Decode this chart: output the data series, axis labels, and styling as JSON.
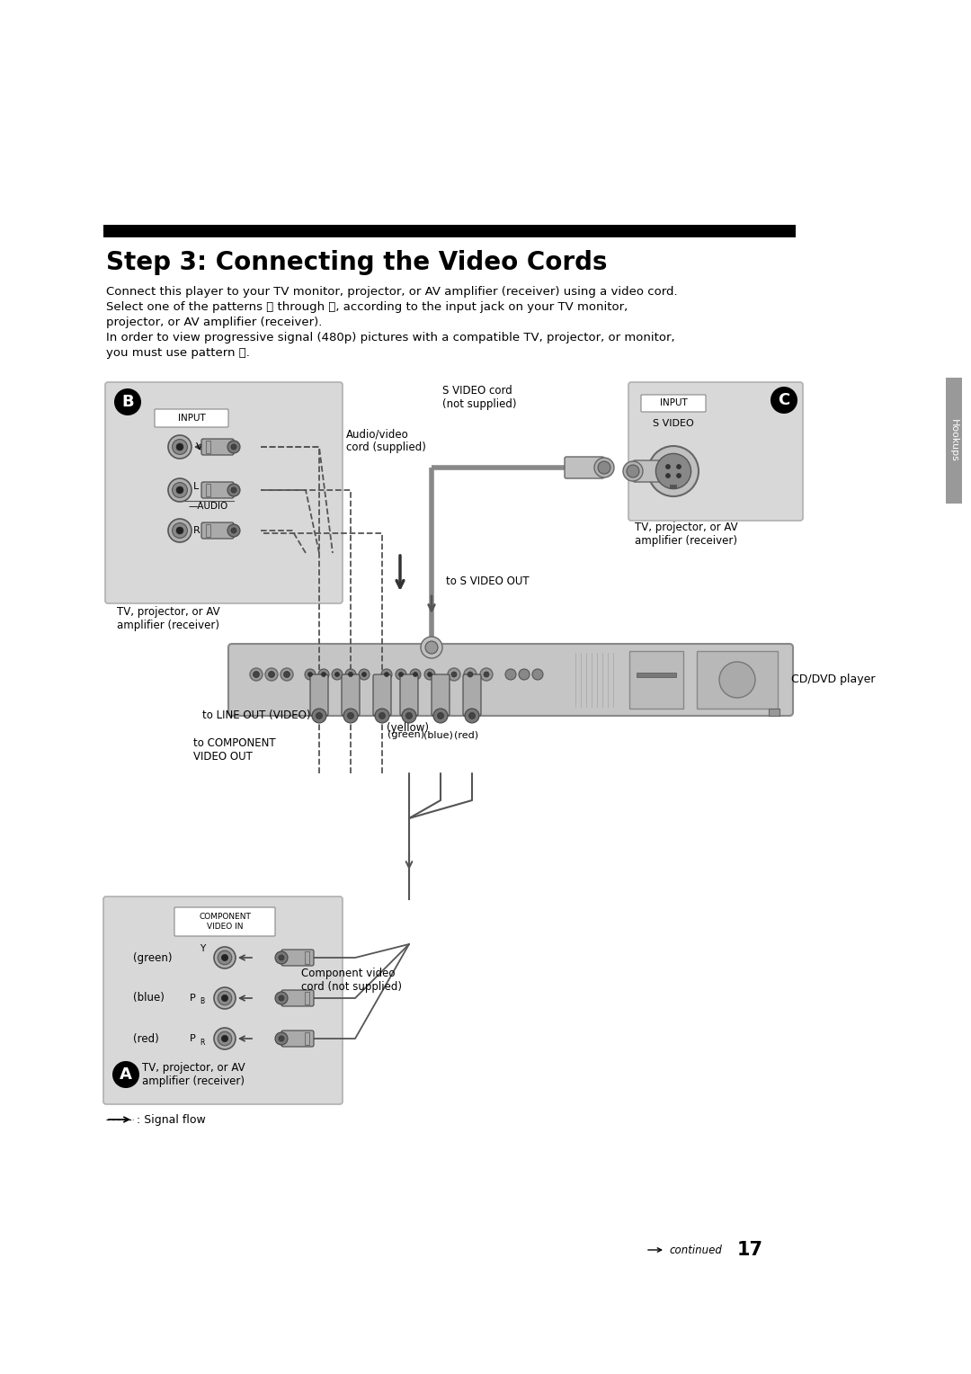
{
  "title": "Step 3: Connecting the Video Cords",
  "bg_color": "#ffffff",
  "body_line1": "Connect this player to your TV monitor, projector, or AV amplifier (receiver) using a video cord.",
  "body_line2": "Select one of the patterns Ⓐ through Ⓒ, according to the input jack on your TV monitor,",
  "body_line3": "projector, or AV amplifier (receiver).",
  "body_line4": "In order to view progressive signal (480p) pictures with a compatible TV, projector, or monitor,",
  "body_line5": "you must use pattern Ⓐ.",
  "hookups_label": "Hookups",
  "signal_flow": ": Signal flow",
  "continued": "continued",
  "page_num": "17",
  "label_audio_video": "Audio/video\ncord (supplied)",
  "label_svideo_cord": "S VIDEO cord\n(not supplied)",
  "label_svideo_out": "to S VIDEO OUT",
  "label_line_out": "to LINE OUT (VIDEO)",
  "label_component_out": "to COMPONENT\nVIDEO OUT",
  "label_comp_cord": "Component video\ncord (not supplied)",
  "label_cdvd": "CD/DVD player",
  "label_tv_b": "TV, projector, or AV\namplifier (receiver)",
  "label_tv_c": "TV, projector, or AV\namplifier (receiver)",
  "label_tv_a": "TV, projector, or AV\namplifier (receiver)",
  "label_yellow": "(yellow)",
  "label_green": "(green)",
  "label_blue": "(blue)",
  "label_red": "(red)",
  "gray_box": "#d8d8d8",
  "gray_border": "#b0b0b0",
  "dark_gray": "#888888",
  "light_gray": "#cccccc",
  "black": "#000000",
  "white": "#ffffff"
}
